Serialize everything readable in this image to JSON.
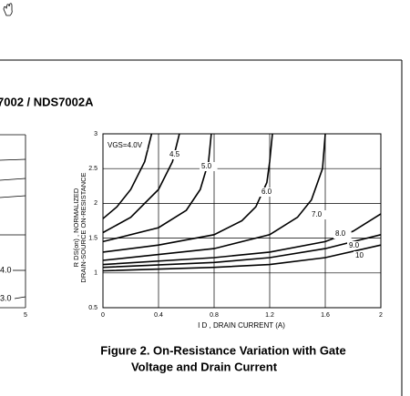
{
  "header": "7002 / NDS7002A",
  "left_fragment": {
    "labels": [
      "4.0",
      "3.0"
    ],
    "xtick": "5"
  },
  "chart_data": {
    "type": "line",
    "ylabel": [
      "R DS(on) , NORMALIZED",
      "DRAIN-SOURCE ON-RESISTANCE"
    ],
    "xlabel": "I D , DRAIN CURRENT (A)",
    "caption": [
      "Figure 2. On-Resistance Variation with Gate",
      "Voltage and Drain Current"
    ],
    "xlim": [
      0,
      2
    ],
    "ylim": [
      0.5,
      3
    ],
    "xticks": [
      0,
      0.4,
      0.8,
      1.2,
      1.6,
      2
    ],
    "yticks": [
      0.5,
      1,
      1.5,
      2,
      2.5,
      3
    ],
    "grid": true,
    "series": [
      {
        "name": "VGS=4.0V",
        "color": "#000000",
        "x": [
          0,
          0.1,
          0.2,
          0.3,
          0.35
        ],
        "values": [
          1.78,
          1.95,
          2.2,
          2.6,
          3
        ]
      },
      {
        "name": "4.5",
        "color": "#000000",
        "x": [
          0,
          0.2,
          0.4,
          0.5,
          0.55
        ],
        "values": [
          1.58,
          1.8,
          2.2,
          2.6,
          3
        ]
      },
      {
        "name": "5.0",
        "color": "#000000",
        "x": [
          0,
          0.4,
          0.6,
          0.7,
          0.76,
          0.78
        ],
        "values": [
          1.45,
          1.65,
          1.9,
          2.2,
          2.6,
          3
        ]
      },
      {
        "name": "6.0",
        "color": "#000000",
        "x": [
          0,
          0.4,
          0.8,
          1.0,
          1.1,
          1.18,
          1.2,
          1.22
        ],
        "values": [
          1.3,
          1.4,
          1.55,
          1.75,
          1.95,
          2.3,
          2.6,
          3
        ]
      },
      {
        "name": "7.0",
        "color": "#000000",
        "x": [
          0,
          0.8,
          1.2,
          1.4,
          1.5,
          1.58,
          1.6
        ],
        "values": [
          1.18,
          1.35,
          1.55,
          1.8,
          2.05,
          2.5,
          3
        ]
      },
      {
        "name": "8.0",
        "color": "#000000",
        "x": [
          0,
          0.8,
          1.2,
          1.6,
          1.8,
          2
        ],
        "values": [
          1.12,
          1.22,
          1.3,
          1.45,
          1.6,
          1.85
        ]
      },
      {
        "name": "9.0",
        "color": "#000000",
        "x": [
          0,
          0.8,
          1.2,
          1.6,
          2
        ],
        "values": [
          1.08,
          1.15,
          1.22,
          1.35,
          1.55
        ]
      },
      {
        "name": "10",
        "color": "#000000",
        "x": [
          0,
          0.8,
          1.2,
          1.6,
          2
        ],
        "values": [
          1.03,
          1.08,
          1.12,
          1.22,
          1.4
        ]
      }
    ]
  }
}
